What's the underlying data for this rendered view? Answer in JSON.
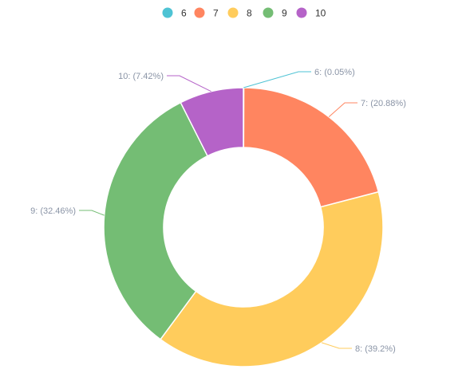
{
  "chart_data": {
    "type": "pie",
    "donut": true,
    "categories": [
      "6",
      "7",
      "8",
      "9",
      "10"
    ],
    "values": [
      0.05,
      20.88,
      39.2,
      32.46,
      7.42
    ],
    "labels": [
      "6: (0.05%)",
      "7: (20.88%)",
      "8: (39.2%)",
      "9: (32.46%)",
      "10: (7.42%)"
    ],
    "colors": [
      "#4ec3d4",
      "#ff8560",
      "#ffcc5c",
      "#74bd74",
      "#b563c8"
    ],
    "legend": {
      "position": "top-center",
      "items": [
        "6",
        "7",
        "8",
        "9",
        "10"
      ]
    },
    "start_angle": "12 o'clock",
    "direction": "clockwise"
  }
}
